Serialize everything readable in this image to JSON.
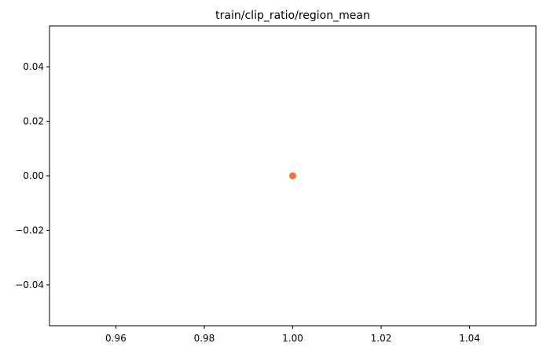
{
  "chart_data": {
    "type": "scatter",
    "title": "train/clip_ratio/region_mean",
    "xlabel": "",
    "ylabel": "",
    "x": [
      1.0
    ],
    "y": [
      0.0
    ],
    "xlim": [
      0.945,
      1.055
    ],
    "ylim": [
      -0.055,
      0.055
    ],
    "xticks": [
      0.96,
      0.98,
      1.0,
      1.02,
      1.04
    ],
    "xtick_labels": [
      "0.96",
      "0.98",
      "1.00",
      "1.02",
      "1.04"
    ],
    "yticks": [
      -0.04,
      -0.02,
      0.0,
      0.02,
      0.04
    ],
    "ytick_labels": [
      "−0.04",
      "−0.02",
      "0.00",
      "0.02",
      "0.04"
    ],
    "grid": false,
    "legend": "none",
    "point_color": "#f2703f"
  }
}
